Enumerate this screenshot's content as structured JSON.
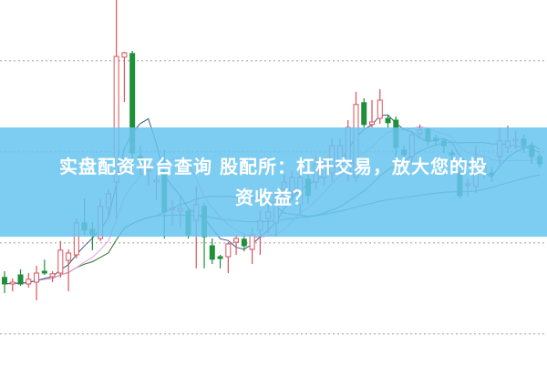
{
  "title": {
    "line1": "实盘配资平台查询 股配所：杠杆交易，放大您的投",
    "line2": "资收益？"
  },
  "colors": {
    "up": "#d9535a",
    "down": "#1f8f3a",
    "banner": "#68c4f0",
    "grid": "#aaaaaa",
    "ma_short": "#3d5a85",
    "ma_mid": "#e59ae0",
    "ma_long": "#4d7f3f",
    "ma_longest": "#3a8c8c"
  },
  "chart_data": {
    "type": "candlestick",
    "title": "",
    "xlabel": "",
    "ylabel": "",
    "ylim": [
      0,
      100
    ],
    "grid": "horizontal dotted",
    "ohlc": [
      [
        23.8,
        22,
        25.5,
        19.5
      ],
      [
        22,
        22.5,
        23.5,
        20
      ],
      [
        24.5,
        22,
        26,
        21.5
      ],
      [
        22,
        23.3,
        25,
        21
      ],
      [
        22.5,
        25,
        27,
        17.5
      ],
      [
        25.5,
        25,
        28.7,
        24.5
      ],
      [
        24,
        24.8,
        25.5,
        22.5
      ],
      [
        25,
        31.3,
        33.8,
        23.8
      ],
      [
        28.5,
        30.5,
        31.5,
        20
      ],
      [
        30,
        38.8,
        40,
        29
      ],
      [
        38.8,
        36.8,
        45.5,
        35.5
      ],
      [
        37,
        35.5,
        39,
        31.3
      ],
      [
        34.5,
        43.3,
        45.3,
        33.8
      ],
      [
        43,
        46.8,
        48,
        40
      ],
      [
        50,
        84.5,
        100,
        40
      ],
      [
        84.3,
        85.5,
        85.8,
        72
      ],
      [
        85.3,
        58,
        86,
        55
      ],
      [
        57,
        55.5,
        60,
        52
      ],
      [
        53,
        53.5,
        54.5,
        49
      ],
      [
        50,
        50.5,
        52,
        45
      ],
      [
        52.5,
        41.8,
        58.8,
        34.5
      ],
      [
        42.5,
        42.8,
        45,
        38
      ],
      [
        42,
        42.8,
        46.3,
        37.5
      ],
      [
        42,
        35.5,
        43,
        34.5
      ],
      [
        39.5,
        43.8,
        48.8,
        26.3
      ],
      [
        43.3,
        35,
        44.3,
        26.3
      ],
      [
        32.5,
        28.8,
        34.5,
        27.5
      ],
      [
        29.5,
        29,
        30,
        26.3
      ],
      [
        29.5,
        33,
        33.5,
        25
      ],
      [
        33.5,
        34.5,
        35.5,
        30
      ],
      [
        34.3,
        32.5,
        35.5,
        31
      ],
      [
        31.5,
        35.5,
        37.5,
        27.5
      ],
      [
        36.8,
        39.3,
        42,
        30
      ],
      [
        40,
        41.8,
        44,
        36
      ],
      [
        38.8,
        46.3,
        47.5,
        35
      ],
      [
        48,
        50,
        52,
        44
      ],
      [
        47.5,
        51.3,
        53,
        45
      ],
      [
        43.8,
        51.3,
        53,
        41
      ],
      [
        50.8,
        46.3,
        52,
        44
      ],
      [
        50,
        55,
        57,
        48
      ],
      [
        51.3,
        55,
        56,
        49
      ],
      [
        52.5,
        60,
        62,
        50
      ],
      [
        55,
        60,
        62,
        53
      ],
      [
        52.5,
        65,
        67,
        50
      ],
      [
        51.3,
        71.3,
        74.8,
        50
      ],
      [
        71.8,
        65.8,
        73,
        65
      ],
      [
        65.8,
        66.5,
        72.5,
        65
      ],
      [
        67.5,
        72.5,
        75.5,
        66
      ],
      [
        67.5,
        66.3,
        68.3,
        65
      ],
      [
        67,
        59.5,
        68,
        56.3
      ],
      [
        58.8,
        57.5,
        60,
        55
      ],
      [
        57,
        63,
        64,
        55
      ],
      [
        63.3,
        64.3,
        65.8,
        62
      ],
      [
        64.5,
        61.3,
        65,
        60
      ],
      [
        62,
        61.3,
        63,
        60
      ],
      [
        61.3,
        60,
        62,
        58
      ],
      [
        58,
        57.5,
        59,
        55
      ],
      [
        52.5,
        46.3,
        54,
        45.5
      ],
      [
        49.3,
        49.5,
        51,
        46
      ],
      [
        48.8,
        54.3,
        60,
        47
      ],
      [
        52.5,
        55,
        57,
        51
      ],
      [
        52.5,
        52,
        54,
        50
      ],
      [
        57,
        61.3,
        65,
        55
      ],
      [
        59.5,
        61.3,
        65.5,
        58
      ],
      [
        61.3,
        61.8,
        64,
        59
      ],
      [
        61.8,
        60,
        63,
        58
      ],
      [
        60,
        57,
        61,
        55
      ],
      [
        57,
        55,
        58,
        54
      ]
    ],
    "gridlines": [
      83.3,
      58.3,
      33.3,
      8.3
    ]
  }
}
